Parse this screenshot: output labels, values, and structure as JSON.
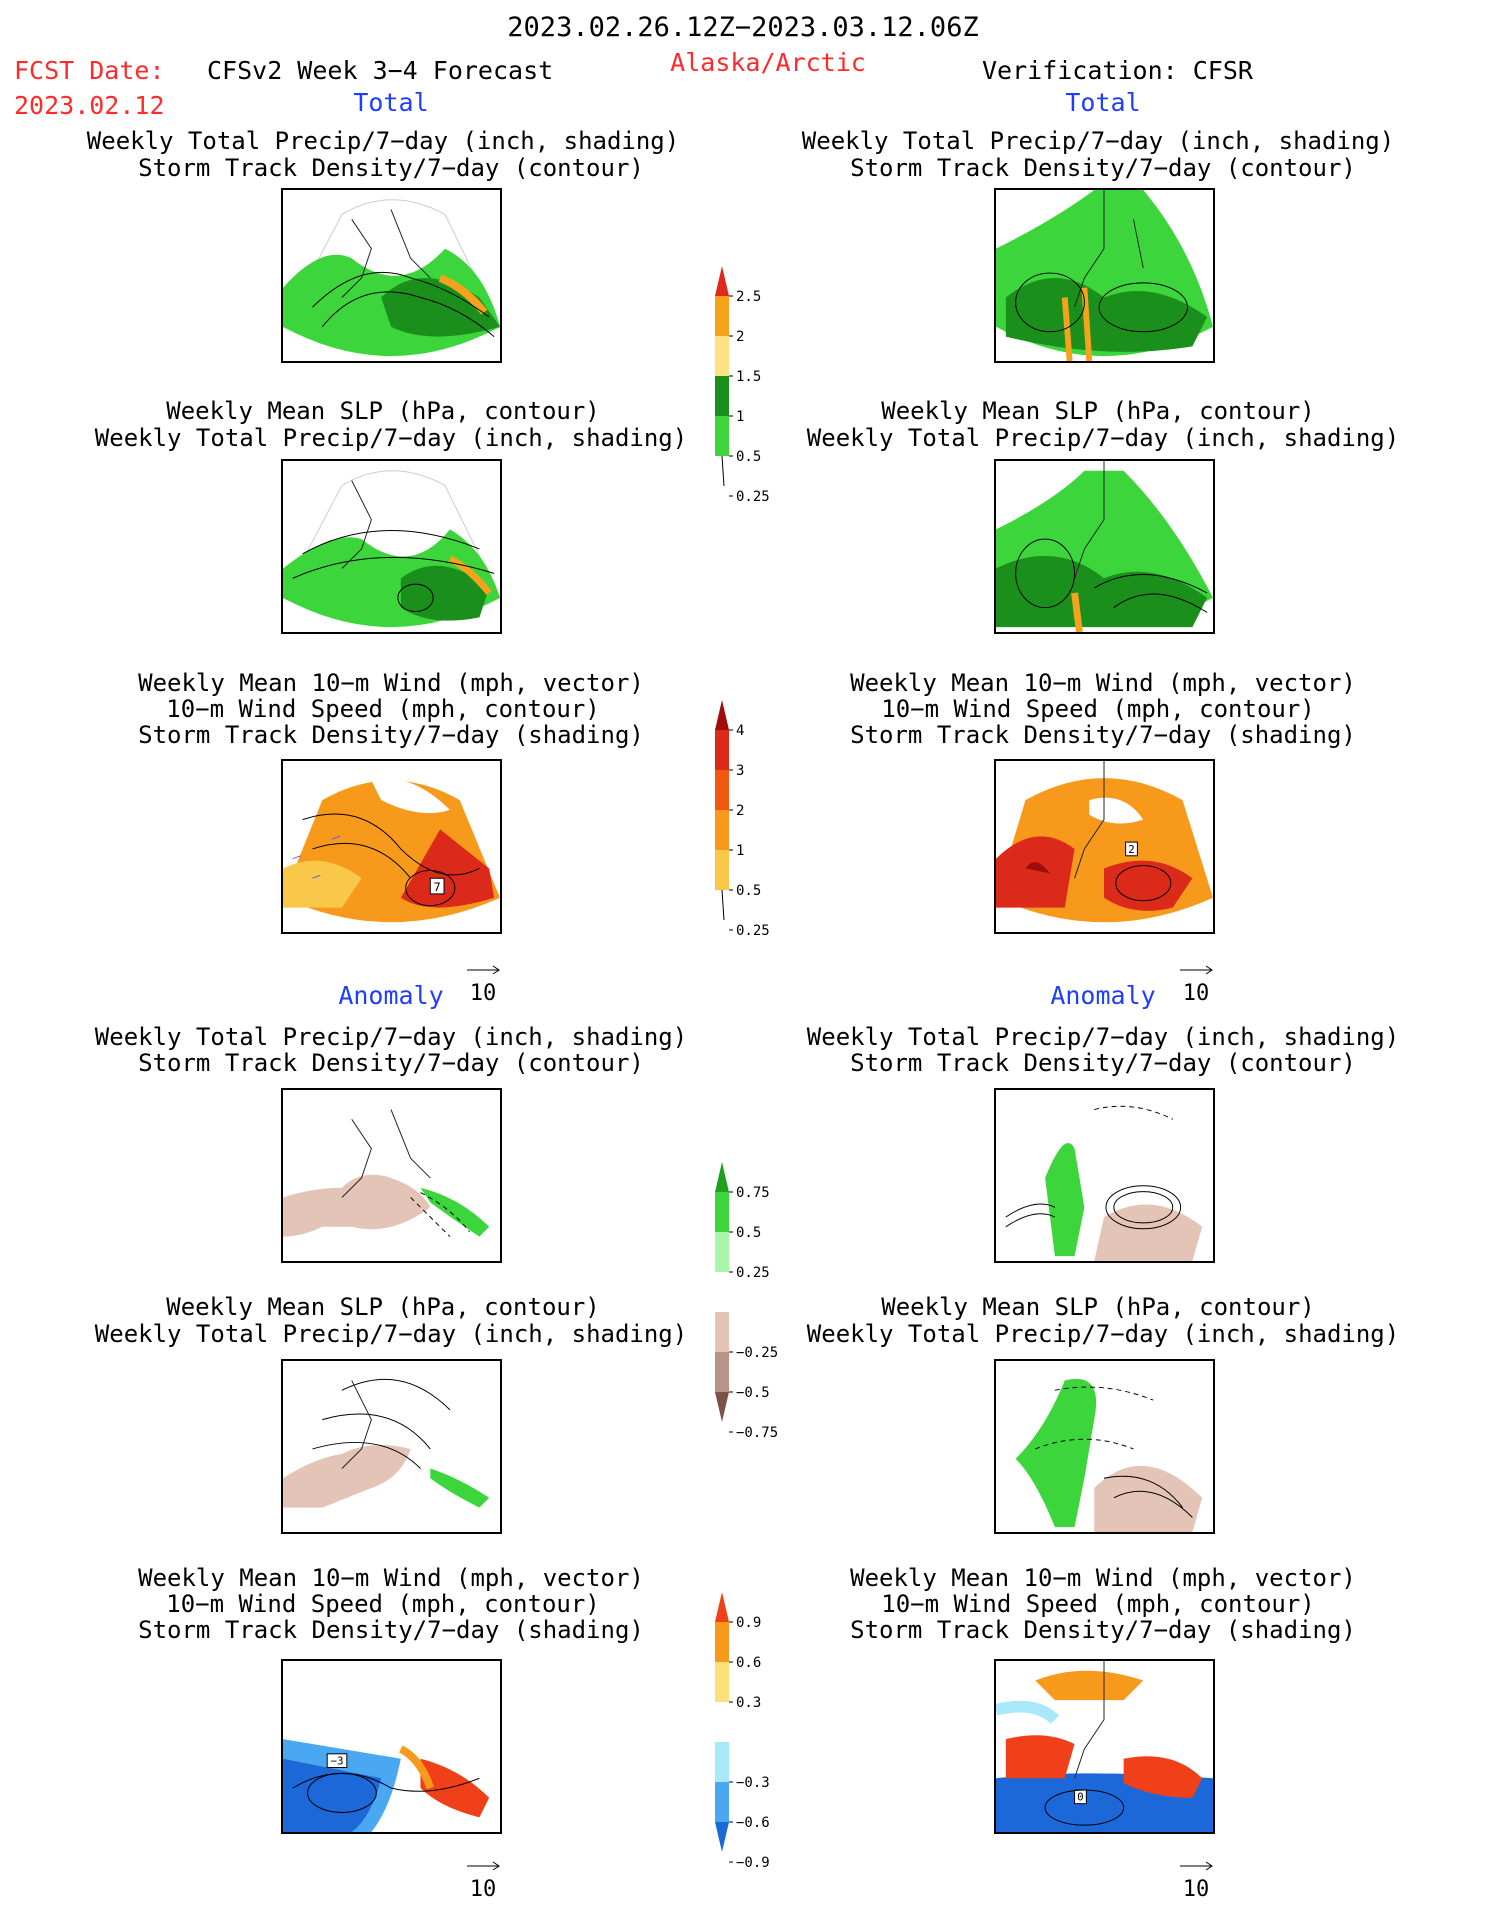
{
  "header": {
    "date_range": "2023.02.26.12Z−2023.03.12.06Z",
    "fcst_label": "FCST Date:",
    "fcst_date": "2023.02.12",
    "model": "CFSv2 Week 3−4 Forecast",
    "region": "Alaska/Arctic",
    "verification": "Verification: CFSR"
  },
  "sections": {
    "total_left": "Total",
    "total_right": "Total",
    "anomaly_left": "Anomaly",
    "anomaly_right": "Anomaly"
  },
  "panel_titles": {
    "precip_storm": [
      "Weekly Total Precip/7−day (inch, shading)",
      "Storm Track Density/7−day (contour)"
    ],
    "slp_precip": [
      "Weekly Mean SLP (hPa, contour)",
      "Weekly Total Precip/7−day (inch, shading)"
    ],
    "wind_storm": [
      "Weekly Mean 10−m Wind (mph, vector)",
      "10−m Wind Speed (mph, contour)",
      "Storm Track Density/7−day (shading)"
    ]
  },
  "reference_vector": "10",
  "colorbars": {
    "precip_total": {
      "labels": [
        "2.5",
        "2",
        "1.5",
        "1",
        "0.5",
        "0.25"
      ],
      "colors": [
        "#dd2a1a",
        "#f7a21c",
        "#fce282",
        "#1b8f1b",
        "#3cd63c",
        "#a9f5a9"
      ]
    },
    "storm_total": {
      "labels": [
        "4",
        "3",
        "2",
        "1",
        "0.5",
        "0.25"
      ],
      "colors": [
        "#9e0c0c",
        "#dc2a1a",
        "#f05a10",
        "#f79a1c",
        "#f9c84a",
        "#fdf5a0"
      ]
    },
    "precip_anom": {
      "labels": [
        "0.75",
        "0.5",
        "0.25",
        "−0.25",
        "−0.5",
        "−0.75"
      ],
      "colors": [
        "#1ea01e",
        "#3cd63c",
        "#a9f5a9",
        "#ffffff",
        "#e4c4b6",
        "#b8938a",
        "#7c5246"
      ]
    },
    "storm_anom": {
      "labels": [
        "0.9",
        "0.6",
        "0.3",
        "−0.3",
        "−0.6",
        "−0.9"
      ],
      "colors": [
        "#f0401a",
        "#f79a1c",
        "#fde07a",
        "#ffffff",
        "#a9e8fb",
        "#4aa8f2",
        "#1d68d8"
      ]
    }
  },
  "map_labels": {
    "storm_total_left": "7",
    "storm_total_right": "2",
    "storm_anom_left": "−3",
    "storm_anom_right": "0"
  }
}
